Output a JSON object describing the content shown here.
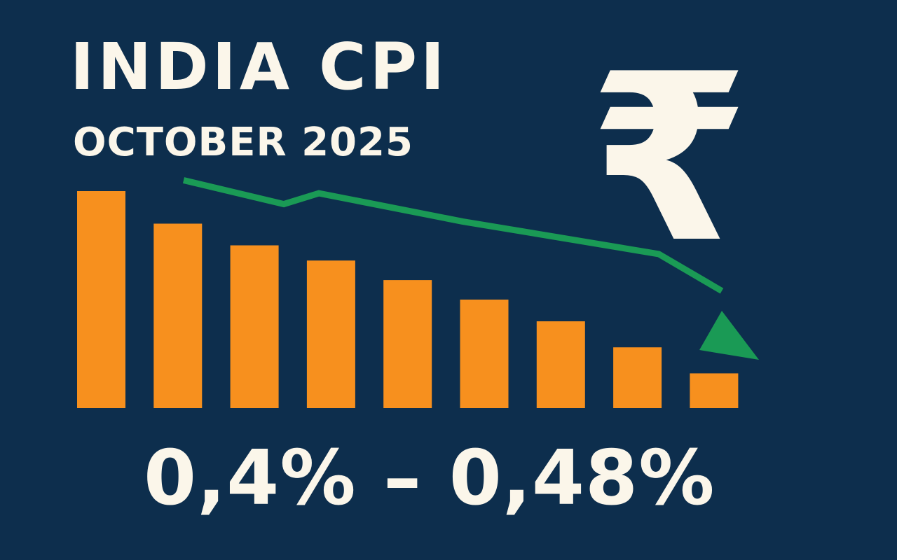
{
  "header": {
    "title": "INDIA CPI",
    "subtitle": "OCTOBER 2025"
  },
  "currency_symbol": "₹",
  "range_label": "0,4% – 0,48%",
  "colors": {
    "background": "#0d2e4d",
    "bar": "#f7901e",
    "trend": "#1a9a55",
    "text": "#fbf6ea"
  },
  "chart_data": {
    "type": "bar",
    "title": "INDIA CPI",
    "subtitle": "OCTOBER 2025",
    "categories": [
      "",
      "",
      "",
      "",
      "",
      "",
      "",
      "",
      ""
    ],
    "values": [
      100,
      85,
      75,
      68,
      59,
      50,
      40,
      28,
      16
    ],
    "ylim": [
      0,
      100
    ],
    "grid": false,
    "legend": "none",
    "trend_line": {
      "direction": "down",
      "values": [
        105,
        94,
        99,
        86,
        82,
        71,
        54
      ]
    }
  }
}
